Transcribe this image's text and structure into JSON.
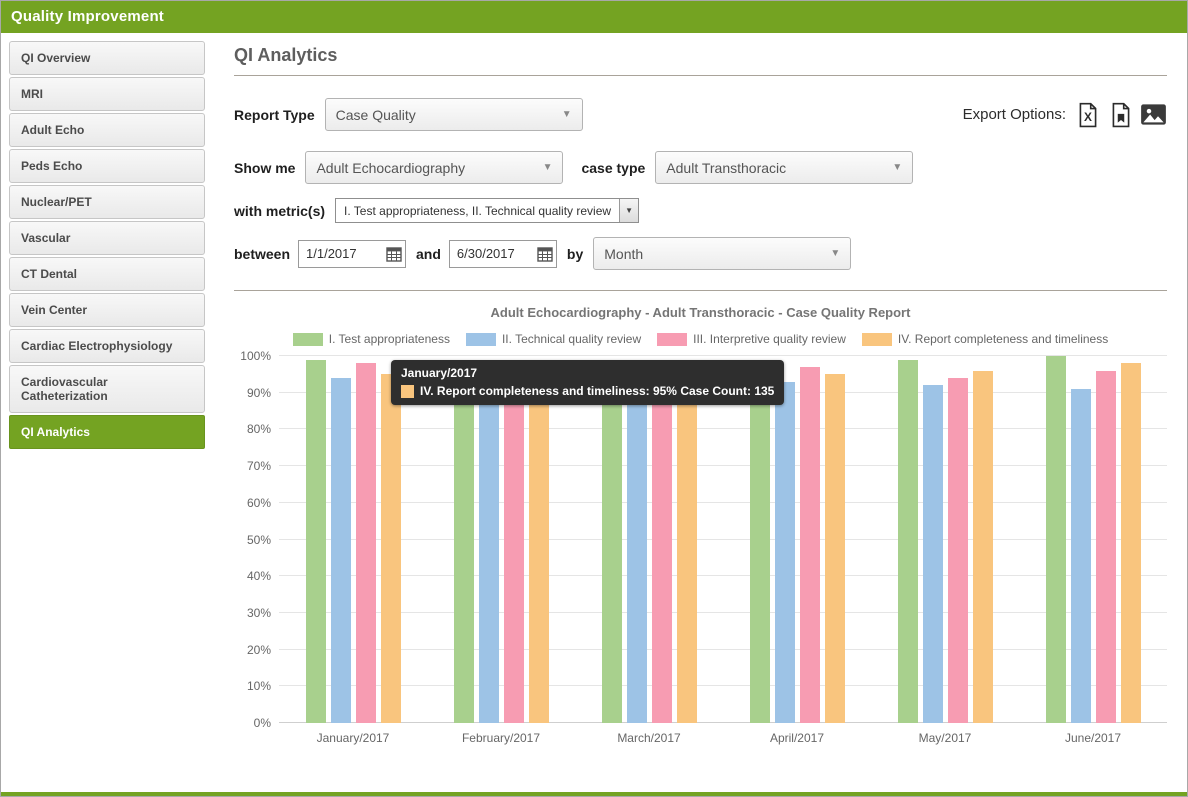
{
  "header": {
    "title": "Quality Improvement"
  },
  "sidebar": {
    "items": [
      {
        "label": "QI Overview"
      },
      {
        "label": "MRI"
      },
      {
        "label": "Adult Echo"
      },
      {
        "label": "Peds Echo"
      },
      {
        "label": "Nuclear/PET"
      },
      {
        "label": "Vascular"
      },
      {
        "label": "CT Dental"
      },
      {
        "label": "Vein Center"
      },
      {
        "label": "Cardiac Electrophysiology"
      },
      {
        "label": "Cardiovascular Catheterization"
      },
      {
        "label": "QI Analytics"
      }
    ]
  },
  "main": {
    "page_title": "QI Analytics",
    "report_type_label": "Report Type",
    "report_type_value": "Case Quality",
    "export_label": "Export Options:",
    "filters": {
      "show_me_label": "Show me",
      "show_me_value": "Adult Echocardiography",
      "case_type_label": "case type",
      "case_type_value": "Adult Transthoracic",
      "metrics_label": "with metric(s)",
      "metrics_value": "I. Test appropriateness, II. Technical quality review",
      "between_label": "between",
      "date_from": "1/1/2017",
      "and_label": "and",
      "date_to": "6/30/2017",
      "by_label": "by",
      "interval_value": "Month"
    },
    "tooltip": {
      "title": "January/2017",
      "text": "IV. Report completeness and timeliness: 95% Case Count: 135",
      "swatch_color": "#f9c57e"
    }
  },
  "chart_data": {
    "type": "bar",
    "title": "Adult Echocardiography - Adult Transthoracic - Case Quality Report",
    "categories": [
      "January/2017",
      "February/2017",
      "March/2017",
      "April/2017",
      "May/2017",
      "June/2017"
    ],
    "series": [
      {
        "name": "I. Test appropriateness",
        "color": "#a8d08d",
        "values": [
          99,
          99,
          99,
          99,
          99,
          100
        ]
      },
      {
        "name": "II. Technical quality review",
        "color": "#9dc3e6",
        "values": [
          94,
          95,
          94,
          93,
          92,
          91
        ]
      },
      {
        "name": "III. Interpretive quality review",
        "color": "#f79cb2",
        "values": [
          98,
          97,
          97,
          97,
          94,
          96
        ]
      },
      {
        "name": "IV. Report completeness and timeliness",
        "color": "#f9c57e",
        "values": [
          95,
          96,
          96,
          95,
          96,
          98
        ]
      }
    ],
    "ylim": [
      0,
      100
    ],
    "ytick_labels": [
      "0%",
      "10%",
      "20%",
      "30%",
      "40%",
      "50%",
      "60%",
      "70%",
      "80%",
      "90%",
      "100%"
    ],
    "grid": true,
    "legend_position": "top"
  }
}
